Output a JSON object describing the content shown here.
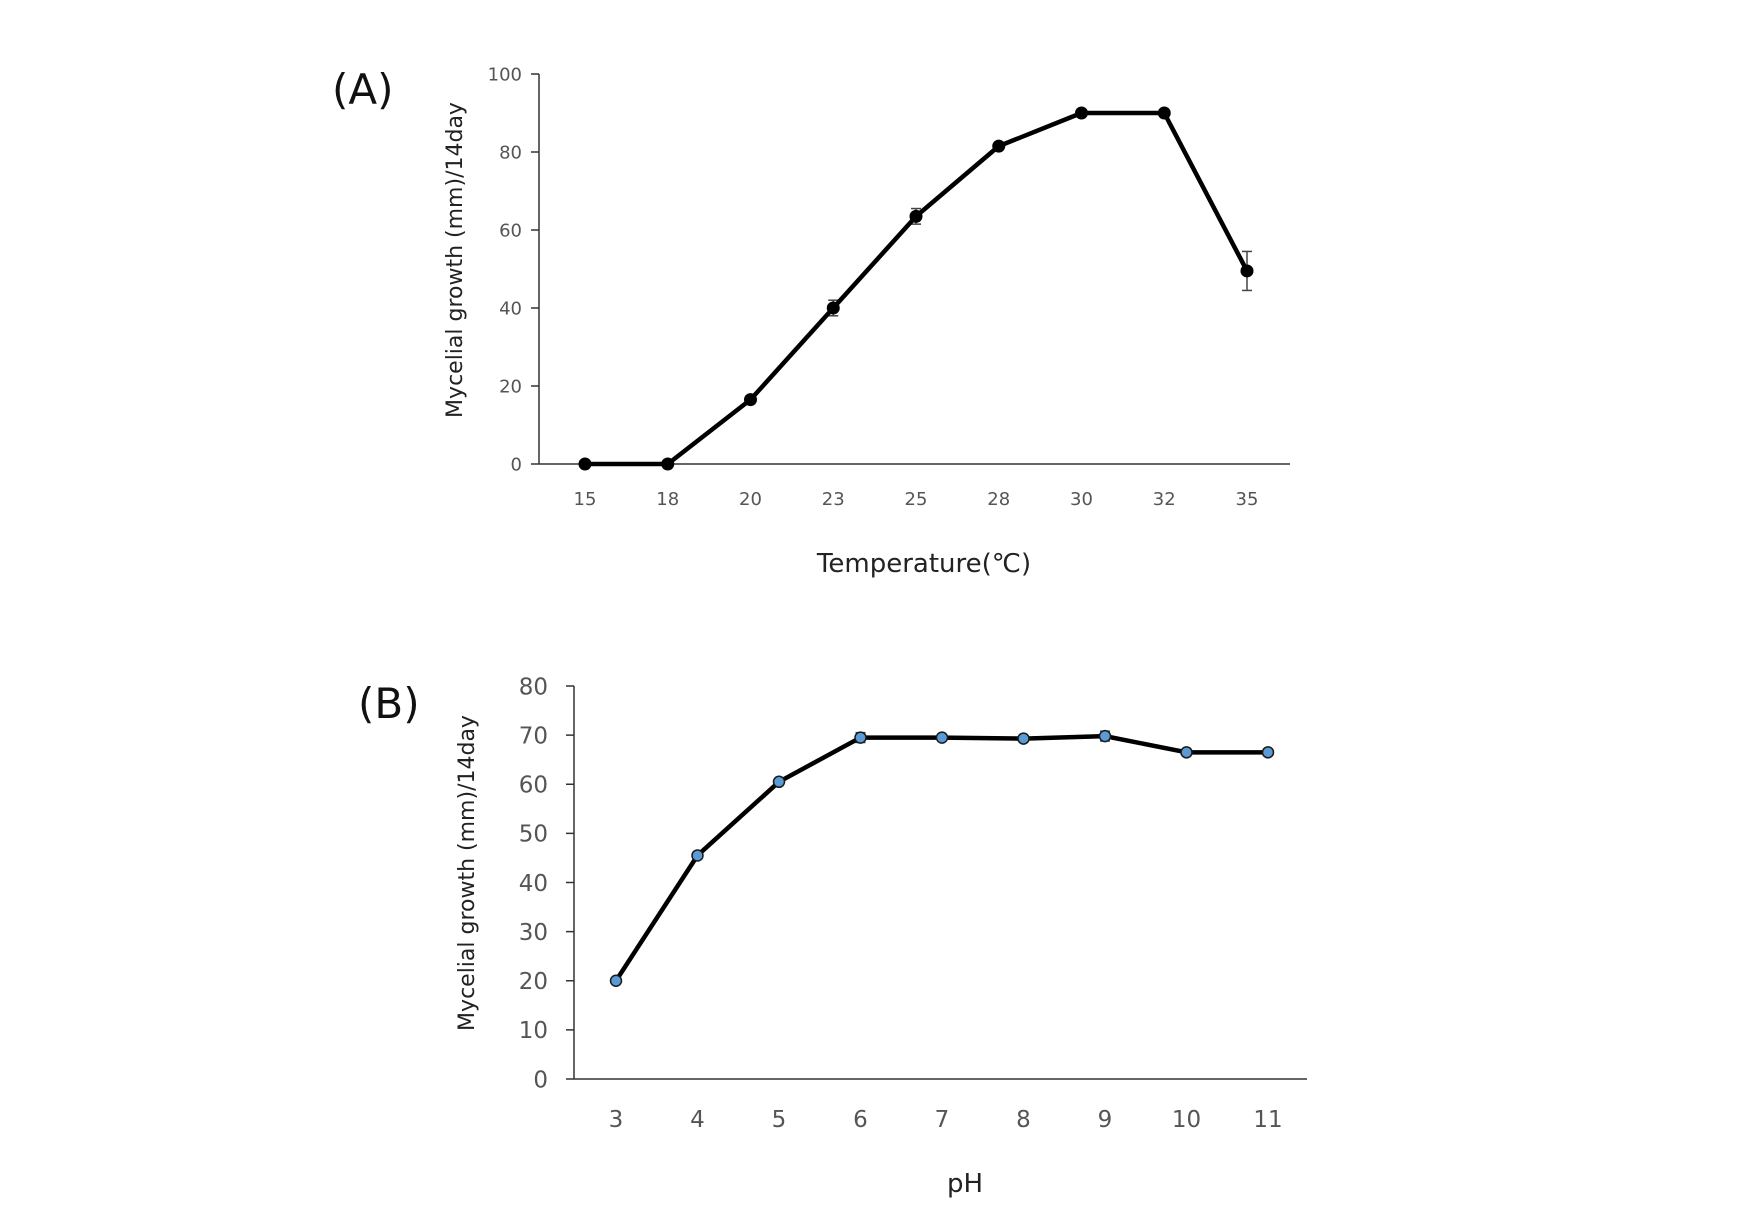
{
  "chart_data": [
    {
      "panel_label": "(A)",
      "type": "line",
      "xlabel": "Temperature(℃)",
      "ylabel": "Mycelial growth (mm)/14day",
      "categories": [
        "15",
        "18",
        "20",
        "23",
        "25",
        "28",
        "30",
        "32",
        "35"
      ],
      "series": [
        {
          "values": [
            0,
            0,
            16.5,
            40,
            63.5,
            81.5,
            90,
            90,
            49.5
          ],
          "errors": [
            0,
            0,
            1,
            2,
            2,
            0.8,
            0.5,
            0.5,
            5
          ],
          "color": "#000000",
          "marker_color": "#000000"
        }
      ],
      "ylim": [
        0,
        100
      ],
      "yticks": [
        "0",
        "20",
        "40",
        "60",
        "80",
        "100"
      ],
      "grid": false,
      "legend": "none"
    },
    {
      "panel_label": "(B)",
      "type": "line",
      "xlabel": "pH",
      "ylabel": "Mycelial growth (mm)/14day",
      "categories": [
        "3",
        "4",
        "5",
        "6",
        "7",
        "8",
        "9",
        "10",
        "11"
      ],
      "series": [
        {
          "values": [
            20,
            45.5,
            60.5,
            69.5,
            69.5,
            69.3,
            69.8,
            66.5,
            66.5
          ],
          "errors": [
            0.3,
            0.5,
            0.5,
            1,
            0.5,
            0.5,
            1,
            0.5,
            0.3
          ],
          "color": "#000000",
          "marker_color": "#5b9bd5"
        }
      ],
      "ylim": [
        0,
        80
      ],
      "yticks": [
        "0",
        "10",
        "20",
        "30",
        "40",
        "50",
        "60",
        "70",
        "80"
      ],
      "grid": false,
      "legend": "none"
    }
  ]
}
